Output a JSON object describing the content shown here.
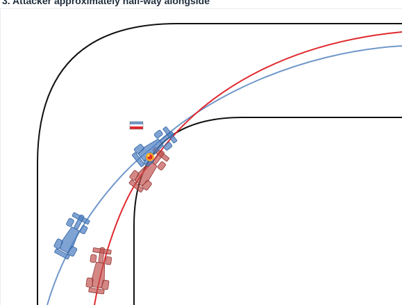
{
  "caption": "3. Attacker approximately half-way alongside",
  "colors": {
    "track_edge": "#111111",
    "blue_line": "#6f97c9",
    "red_line": "#e0282e",
    "blue_car": "#4d7fc2",
    "red_car": "#c0504d"
  },
  "icons": [
    "blue-car-icon",
    "red-car-icon",
    "position-flag-icon",
    "contact-spark-icon"
  ]
}
